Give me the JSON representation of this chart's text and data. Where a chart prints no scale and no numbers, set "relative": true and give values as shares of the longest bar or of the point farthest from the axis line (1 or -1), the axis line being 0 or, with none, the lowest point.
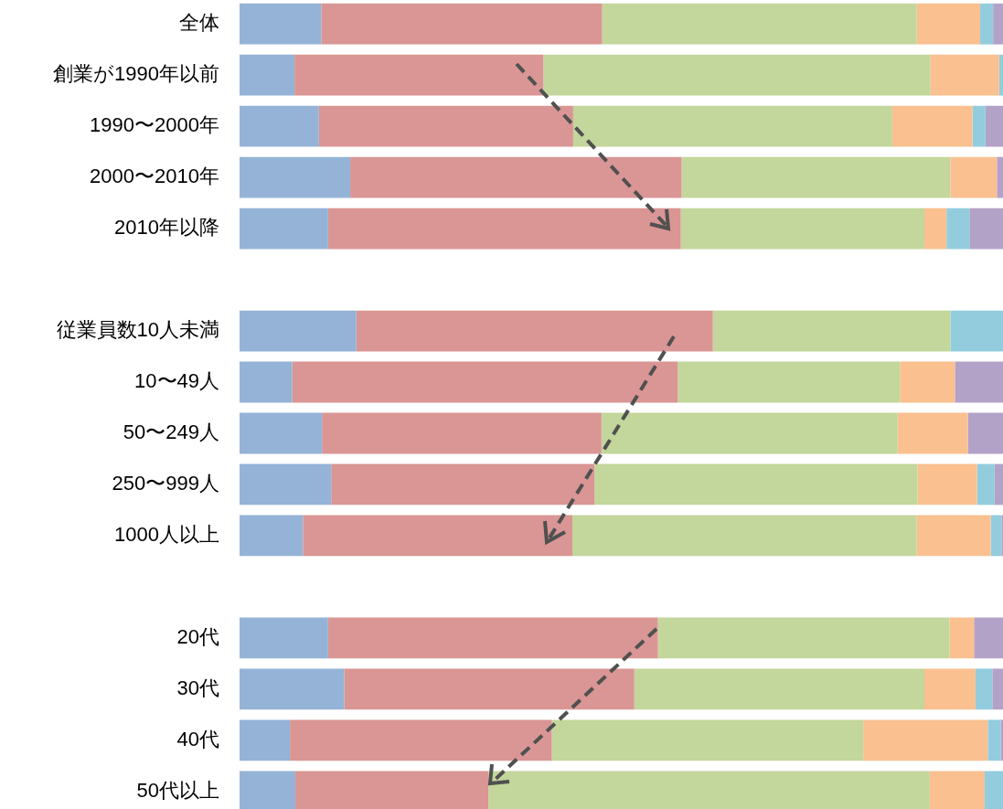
{
  "chart_data": {
    "type": "bar",
    "orientation": "horizontal",
    "stacked": true,
    "relative": true,
    "legend": false,
    "categories": [
      "全体",
      "創業が1990年以前",
      "1990〜2000年",
      "2000〜2010年",
      "2010年以降",
      null,
      "従業員数10人未満",
      "10〜49人",
      "50〜249人",
      "250〜999人",
      "1000人以上",
      null,
      "20代",
      "30代",
      "40代",
      "50代以上"
    ],
    "series": [
      {
        "color": "#95b3d7",
        "values": [
          0.107,
          0.072,
          0.104,
          0.145,
          0.116,
          null,
          0.153,
          0.069,
          0.108,
          0.12,
          0.083,
          null,
          0.116,
          0.137,
          0.066,
          0.073
        ]
      },
      {
        "color": "#d99694",
        "values": [
          0.368,
          0.326,
          0.333,
          0.434,
          0.462,
          null,
          0.467,
          0.505,
          0.366,
          0.345,
          0.353,
          null,
          0.432,
          0.38,
          0.343,
          0.253
        ]
      },
      {
        "color": "#c3d69b",
        "values": [
          0.412,
          0.507,
          0.418,
          0.352,
          0.319,
          null,
          0.311,
          0.291,
          0.388,
          0.423,
          0.451,
          null,
          0.382,
          0.38,
          0.408,
          0.578
        ]
      },
      {
        "color": "#fac090",
        "values": [
          0.083,
          0.09,
          0.105,
          0.061,
          0.029,
          null,
          0,
          0.072,
          0.092,
          0.078,
          0.097,
          null,
          0.032,
          0.067,
          0.163,
          0.072
        ]
      },
      {
        "color": "#93cddd",
        "values": [
          0.017,
          0.005,
          0.017,
          0,
          0.03,
          null,
          0.069,
          0,
          0,
          0.023,
          0.014,
          null,
          0,
          0.022,
          0.017,
          0.024
        ]
      },
      {
        "color": "#b3a2c7",
        "values": [
          0.013,
          0,
          0.023,
          0.008,
          0.044,
          null,
          0,
          0.063,
          0.046,
          0.011,
          0.002,
          null,
          0.038,
          0.014,
          0.003,
          null
        ]
      }
    ]
  }
}
